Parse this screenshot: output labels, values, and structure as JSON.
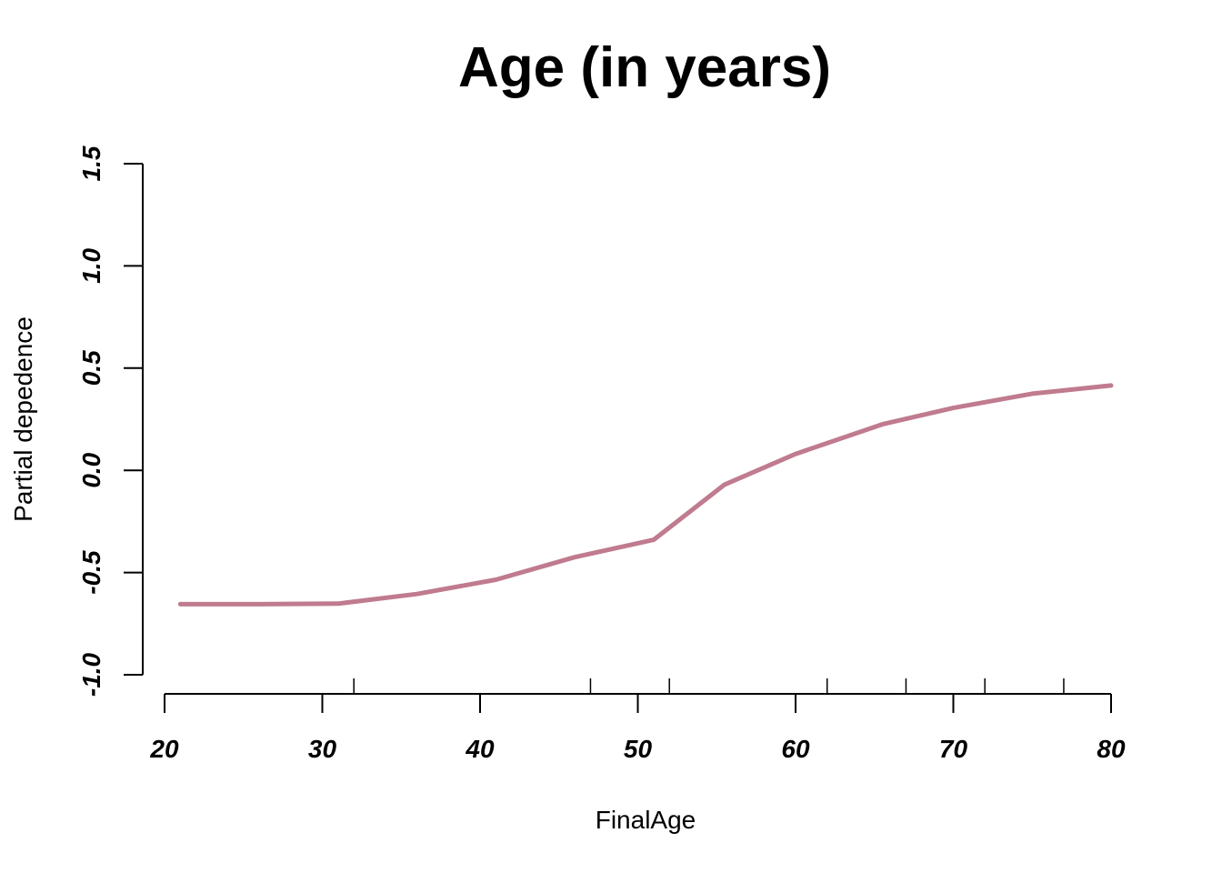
{
  "chart_data": {
    "type": "line",
    "title": "Age (in years)",
    "xlabel": "FinalAge",
    "ylabel": "Partial depedence",
    "xlim": [
      20,
      80
    ],
    "ylim": [
      -1.0,
      1.5
    ],
    "x_ticks": [
      20,
      30,
      40,
      50,
      60,
      70,
      80
    ],
    "x_tick_labels": [
      "20",
      "30",
      "40",
      "50",
      "60",
      "70",
      "80"
    ],
    "y_ticks": [
      -1.0,
      -0.5,
      0.0,
      0.5,
      1.0,
      1.5
    ],
    "y_tick_labels": [
      "-1.0",
      "-0.5",
      "0.0",
      "0.5",
      "1.0",
      "1.5"
    ],
    "rug": [
      32,
      47,
      52,
      62,
      67,
      72,
      77
    ],
    "grid": false,
    "series": [
      {
        "color": "#c07b8f",
        "x": [
          21,
          26,
          31,
          36,
          41,
          46,
          51,
          55.5,
          60,
          65.5,
          70,
          75,
          80
        ],
        "y": [
          -0.655,
          -0.655,
          -0.652,
          -0.605,
          -0.535,
          -0.425,
          -0.34,
          -0.07,
          0.08,
          0.225,
          0.305,
          0.375,
          0.415
        ]
      }
    ]
  }
}
